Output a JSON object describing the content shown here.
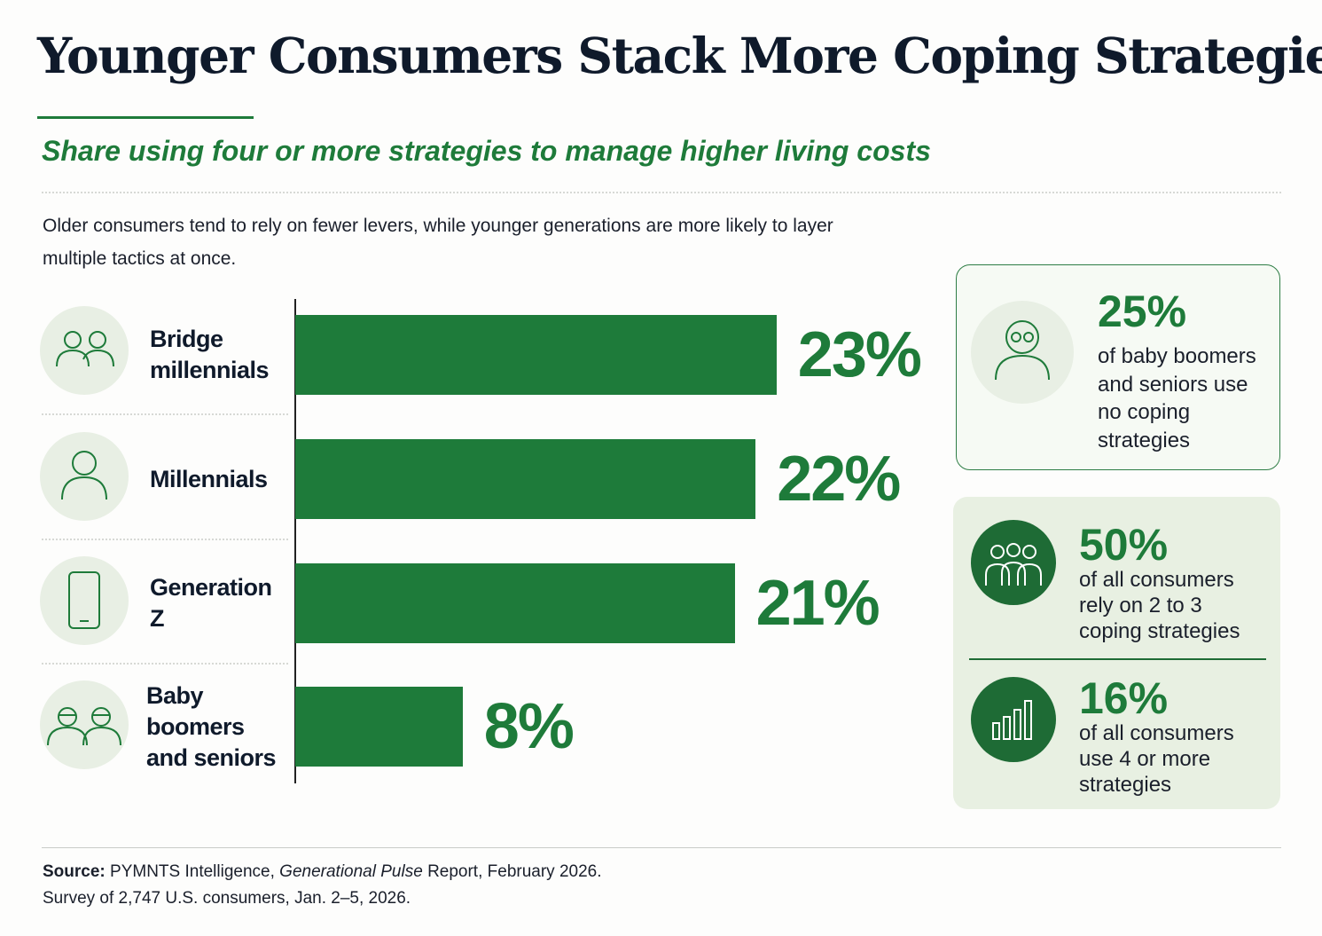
{
  "chart_data": {
    "type": "bar",
    "orientation": "horizontal",
    "title": "Younger Consumers Stack More Coping Strategies",
    "subtitle": "Share using four or more strategies to manage higher living costs",
    "description": "Older consumers tend to rely on fewer levers, while younger generations are more likely to layer multiple tactics at once.",
    "categories": [
      "Bridge millennials",
      "Millennials",
      "Generation Z",
      "Baby boomers and seniors"
    ],
    "values": [
      23,
      22,
      21,
      8
    ],
    "value_labels": [
      "23%",
      "22%",
      "21%",
      "8%"
    ],
    "color": "#1e7b3a"
  },
  "callouts": [
    {
      "value": "25%",
      "text": "of baby boomers and seniors use no coping strategies"
    },
    {
      "value": "50%",
      "text": "of all consumers rely on 2 to 3 coping strategies"
    },
    {
      "value": "16%",
      "text": "of all consumers use 4 or more strategies"
    }
  ],
  "source": {
    "label": "Source:",
    "before": "PYMNTS Intelligence,",
    "italic": "Generational Pulse",
    "after": "Report, February 2026.",
    "note": "Survey of 2,747 U.S. consumers, Jan. 2–5, 2026."
  }
}
